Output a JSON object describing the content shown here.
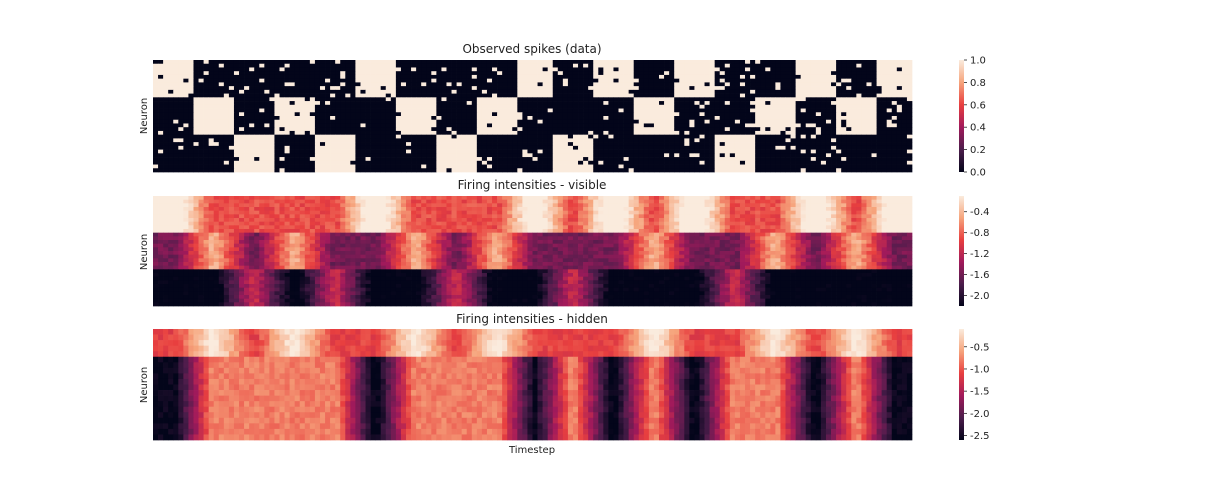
{
  "chart_data": [
    {
      "type": "heatmap",
      "title": "Observed spikes (data)",
      "ylabel": "Neuron",
      "xlabel": "",
      "colorbar": {
        "min": 0.0,
        "max": 1.0,
        "ticks": [
          "0.0",
          "0.2",
          "0.4",
          "0.6",
          "0.8",
          "1.0"
        ]
      },
      "rows": 30,
      "cols": 150,
      "state_sequence": [
        0,
        1,
        2,
        1,
        2,
        0,
        1,
        2,
        1,
        0,
        2,
        0,
        1,
        0,
        2,
        1,
        0,
        1,
        0
      ]
    },
    {
      "type": "heatmap",
      "title": "Firing intensities - visible",
      "ylabel": "Neuron",
      "xlabel": "",
      "colorbar": {
        "min": -2.2,
        "max": -0.1,
        "ticks": [
          "-0.4",
          "-0.8",
          "-1.2",
          "-1.6",
          "-2.0"
        ]
      },
      "rows": 30,
      "cols": 150,
      "group_means": [
        -0.5,
        -1.2,
        -1.9
      ]
    },
    {
      "type": "heatmap",
      "title": "Firing intensities - hidden",
      "ylabel": "Neuron",
      "xlabel": "Timestep",
      "colorbar": {
        "min": -2.6,
        "max": -0.1,
        "ticks": [
          "-0.5",
          "-1.0",
          "-1.5",
          "-2.0",
          "-2.5"
        ]
      },
      "rows": 20,
      "cols": 150,
      "group_means": [
        -0.8,
        -1.6
      ]
    }
  ]
}
